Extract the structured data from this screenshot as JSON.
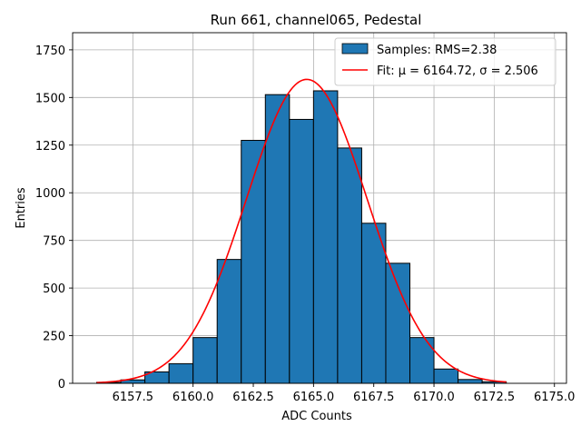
{
  "chart_data": {
    "type": "bar",
    "title": "Run 661, channel065, Pedestal",
    "xlabel": "ADC Counts",
    "ylabel": "Entries",
    "xlim": [
      6155.0,
      6175.5
    ],
    "ylim": [
      0,
      1840
    ],
    "grid": true,
    "legend_position": "top-right",
    "x_ticks": [
      6157.5,
      6160.0,
      6162.5,
      6165.0,
      6167.5,
      6170.0,
      6172.5,
      6175.0
    ],
    "x_tick_labels": [
      "6157.5",
      "6160.0",
      "6162.5",
      "6165.0",
      "6167.5",
      "6170.0",
      "6172.5",
      "6175.0"
    ],
    "y_ticks": [
      0,
      250,
      500,
      750,
      1000,
      1250,
      1500,
      1750
    ],
    "y_tick_labels": [
      "0",
      "250",
      "500",
      "750",
      "1000",
      "1250",
      "1500",
      "1750"
    ],
    "histogram": {
      "name": "Samples: RMS=2.38",
      "color": "#1f77b4",
      "edge_color": "#000000",
      "bins": [
        {
          "left": 6156,
          "right": 6157,
          "value": 5
        },
        {
          "left": 6157,
          "right": 6158,
          "value": 18
        },
        {
          "left": 6158,
          "right": 6159,
          "value": 60
        },
        {
          "left": 6159,
          "right": 6160,
          "value": 103
        },
        {
          "left": 6160,
          "right": 6161,
          "value": 240
        },
        {
          "left": 6161,
          "right": 6162,
          "value": 650
        },
        {
          "left": 6162,
          "right": 6163,
          "value": 1275
        },
        {
          "left": 6163,
          "right": 6164,
          "value": 1515
        },
        {
          "left": 6164,
          "right": 6165,
          "value": 1385
        },
        {
          "left": 6165,
          "right": 6166,
          "value": 1535
        },
        {
          "left": 6166,
          "right": 6167,
          "value": 1235
        },
        {
          "left": 6167,
          "right": 6168,
          "value": 840
        },
        {
          "left": 6168,
          "right": 6169,
          "value": 630
        },
        {
          "left": 6169,
          "right": 6170,
          "value": 240
        },
        {
          "left": 6170,
          "right": 6171,
          "value": 75
        },
        {
          "left": 6171,
          "right": 6172,
          "value": 20
        },
        {
          "left": 6172,
          "right": 6173,
          "value": 8
        }
      ]
    },
    "fit": {
      "name": "Fit: μ = 6164.72, σ = 2.506",
      "color": "#ff0000",
      "mu": 6164.72,
      "sigma": 2.506,
      "amplitude": 1595,
      "x_range": [
        6156,
        6173
      ]
    }
  }
}
